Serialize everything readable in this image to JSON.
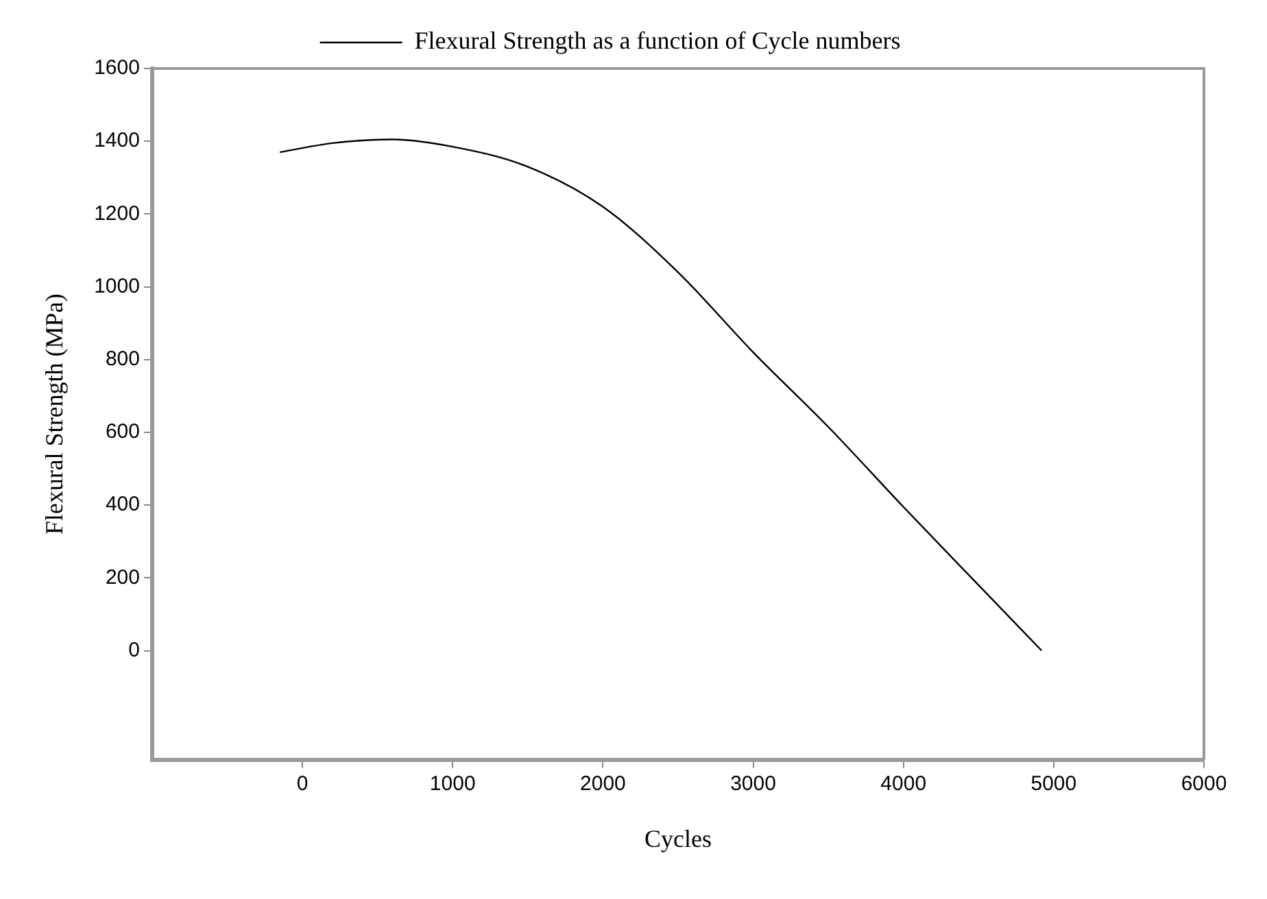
{
  "chart_data": {
    "type": "line",
    "xlabel": "Cycles",
    "ylabel": "Flexural Strength (MPa)",
    "series": [
      {
        "name": "Flexural Strength as a function of Cycle numbers",
        "color": "#000000",
        "x": [
          -150,
          200,
          600,
          1000,
          1500,
          2000,
          2500,
          3000,
          3500,
          4000,
          4500,
          4920
        ],
        "values": [
          1370,
          1395,
          1405,
          1385,
          1330,
          1220,
          1040,
          820,
          615,
          395,
          180,
          0
        ]
      }
    ],
    "xlim": [
      -1000,
      6000
    ],
    "xticks": [
      0,
      1000,
      2000,
      3000,
      4000,
      5000,
      6000
    ],
    "ylim": [
      -300,
      1600
    ],
    "yticks": [
      0,
      200,
      400,
      600,
      800,
      1000,
      1200,
      1400,
      1600
    ],
    "grid": false,
    "legend": "top",
    "marker": "none",
    "line_style": "solid"
  }
}
